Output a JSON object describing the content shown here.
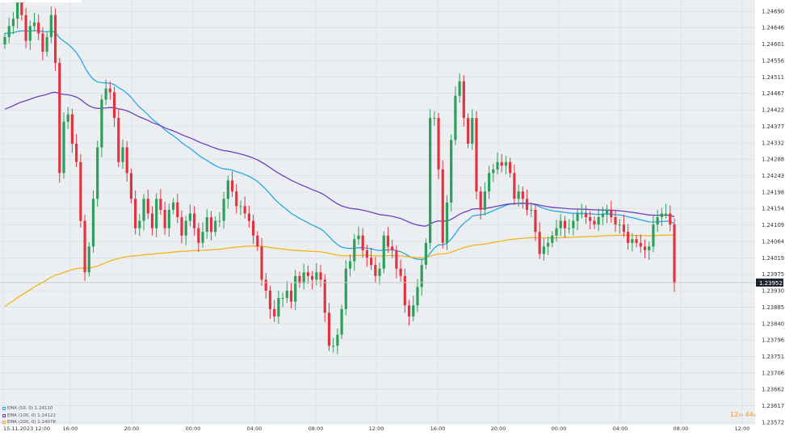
{
  "chart_data": {
    "type": "candlestick",
    "instrument": "",
    "y_ticks": [
      "1.24690",
      "1.24646",
      "1.24601",
      "1.24556",
      "1.24511",
      "1.24467",
      "1.24422",
      "1.24377",
      "1.24332",
      "1.24288",
      "1.24243",
      "1.24198",
      "1.24154",
      "1.24109",
      "1.24064",
      "1.24019",
      "1.23975",
      "1.23930",
      "1.23885",
      "1.23840",
      "1.23796",
      "1.23751",
      "1.23706",
      "1.23662",
      "1.23617",
      "1.23572"
    ],
    "x_ticks": [
      "15.11.2023  12:00",
      "16:00",
      "20:00",
      "00:00",
      "04:00",
      "08:00",
      "12:00",
      "16:00",
      "20:00",
      "00:00",
      "04:00",
      "08:00",
      "12:00"
    ],
    "ylim": [
      1.23572,
      1.2471
    ],
    "current_price": "1.23952",
    "timer": {
      "minutes": "12",
      "m": "m",
      "seconds": "44",
      "s": "s"
    },
    "legend": [
      {
        "label": "EMA (50, 0) 1.24110",
        "color": "#29a8e6"
      },
      {
        "label": "EMA (100, 0) 1.24122",
        "color": "#6f3fc0"
      },
      {
        "label": "EMA (200, 0) 1.24078",
        "color": "#f5b21e"
      }
    ],
    "colors": {
      "up": "#2e9e5b",
      "down": "#e03441",
      "ema50": "#29a8e6",
      "ema100": "#6f3fc0",
      "ema200": "#f5b21e",
      "grid": "#d9dde3",
      "price_line": "#c9c9c9"
    },
    "candles_close": [
      1.2462,
      1.2465,
      1.2467,
      1.2472,
      1.2468,
      1.2461,
      1.2465,
      1.2466,
      1.2463,
      1.2458,
      1.2462,
      1.2468,
      1.2455,
      1.2425,
      1.2439,
      1.2441,
      1.2433,
      1.2428,
      1.2412,
      1.2398,
      1.2405,
      1.2418,
      1.2432,
      1.2445,
      1.2448,
      1.2447,
      1.244,
      1.2428,
      1.2432,
      1.2425,
      1.2418,
      1.241,
      1.2412,
      1.2418,
      1.2414,
      1.241,
      1.2418,
      1.2415,
      1.241,
      1.2415,
      1.2417,
      1.2413,
      1.2408,
      1.2412,
      1.2414,
      1.241,
      1.2406,
      1.2409,
      1.2413,
      1.2409,
      1.2412,
      1.2412,
      1.2418,
      1.2423,
      1.242,
      1.2416,
      1.2416,
      1.2414,
      1.2412,
      1.2408,
      1.2405,
      1.2396,
      1.2393,
      1.2388,
      1.2386,
      1.2391,
      1.2391,
      1.2393,
      1.239,
      1.2397,
      1.2395,
      1.2398,
      1.2397,
      1.2396,
      1.2398,
      1.2396,
      1.2387,
      1.2378,
      1.2378,
      1.2381,
      1.2388,
      1.2399,
      1.2401,
      1.2407,
      1.2408,
      1.2404,
      1.2402,
      1.24,
      1.2397,
      1.2399,
      1.2408,
      1.2405,
      1.2404,
      1.2399,
      1.2397,
      1.2389,
      1.2386,
      1.2389,
      1.2394,
      1.24,
      1.2406,
      1.244,
      1.244,
      1.2426,
      1.2406,
      1.2417,
      1.2434,
      1.2446,
      1.245,
      1.244,
      1.2433,
      1.244,
      1.242,
      1.2415,
      1.242,
      1.2425,
      1.2426,
      1.2428,
      1.2427,
      1.2428,
      1.2425,
      1.2418,
      1.242,
      1.2418,
      1.2415,
      1.2415,
      1.2409,
      1.2403,
      1.2405,
      1.2406,
      1.2408,
      1.241,
      1.2412,
      1.241,
      1.241,
      1.2412,
      1.2414,
      1.2414,
      1.2413,
      1.2412,
      1.2411,
      1.2413,
      1.2414,
      1.2415,
      1.2413,
      1.2411,
      1.2411,
      1.2409,
      1.2406,
      1.2407,
      1.2406,
      1.2405,
      1.2404,
      1.2405,
      1.2411,
      1.2413,
      1.2414,
      1.2414,
      1.2411,
      1.2395
    ]
  }
}
